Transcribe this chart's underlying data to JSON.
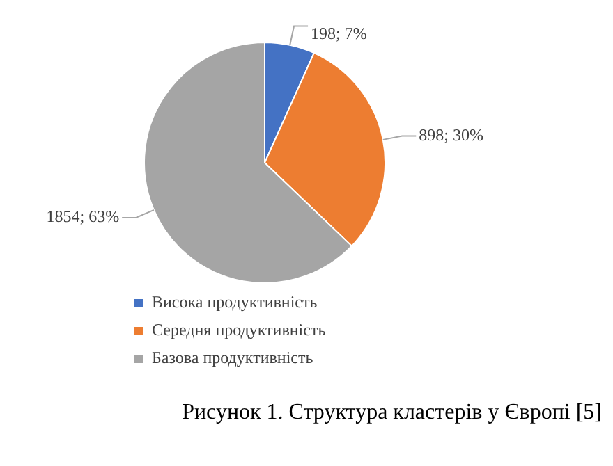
{
  "chart_data": {
    "type": "pie",
    "categories": [
      "Висока продуктивність",
      "Середня продуктивність",
      "Базова продуктивність"
    ],
    "values": [
      198,
      898,
      1854
    ],
    "colors": [
      "#4472c4",
      "#ed7d31",
      "#a5a5a5"
    ],
    "value_labels": [
      "198; 7%",
      "898; 30%",
      "1854; 63%"
    ],
    "legend": "bottom",
    "annotations": [
      "Рисунок 1. Структура кластерів у Європі [5]"
    ]
  }
}
